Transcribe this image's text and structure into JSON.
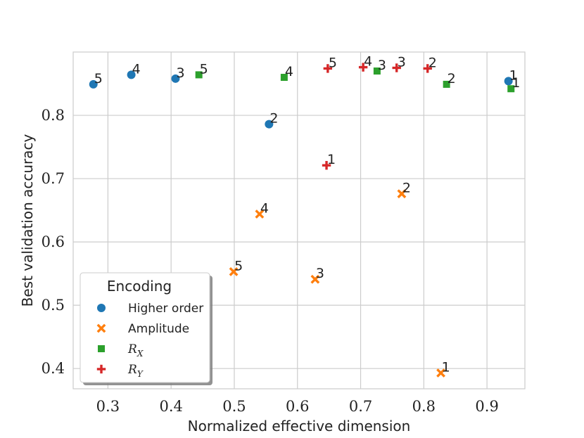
{
  "chart_data": {
    "type": "scatter",
    "title": "",
    "xlabel": "Normalized effective dimension",
    "ylabel": "Best validation accuracy",
    "xlim": [
      0.245,
      0.96
    ],
    "ylim": [
      0.368,
      0.9
    ],
    "xticks": [
      0.3,
      0.4,
      0.5,
      0.6,
      0.7,
      0.8,
      0.9
    ],
    "yticks": [
      0.4,
      0.5,
      0.6,
      0.7,
      0.8
    ],
    "xtick_labels": [
      "0.3",
      "0.4",
      "0.5",
      "0.6",
      "0.7",
      "0.8",
      "0.9"
    ],
    "ytick_labels": [
      "0.4",
      "0.5",
      "0.6",
      "0.7",
      "0.8"
    ],
    "grid": true,
    "legend": {
      "title": "Encoding",
      "position": "bottom-left"
    },
    "series": [
      {
        "name": "Higher order",
        "marker": "circle",
        "color": "#1f77b4",
        "points": [
          {
            "x": 0.277,
            "y": 0.849,
            "label": "5"
          },
          {
            "x": 0.337,
            "y": 0.864,
            "label": "4"
          },
          {
            "x": 0.407,
            "y": 0.858,
            "label": "3"
          },
          {
            "x": 0.555,
            "y": 0.786,
            "label": "2"
          },
          {
            "x": 0.934,
            "y": 0.854,
            "label": "1"
          }
        ]
      },
      {
        "name": "Amplitude",
        "marker": "x",
        "color": "#ff7f0e",
        "points": [
          {
            "x": 0.499,
            "y": 0.553,
            "label": "5"
          },
          {
            "x": 0.54,
            "y": 0.644,
            "label": "4"
          },
          {
            "x": 0.628,
            "y": 0.541,
            "label": "3"
          },
          {
            "x": 0.765,
            "y": 0.676,
            "label": "2"
          },
          {
            "x": 0.827,
            "y": 0.393,
            "label": "1"
          }
        ]
      },
      {
        "name": "R_X",
        "display": {
          "base": "R",
          "sub": "X"
        },
        "marker": "square",
        "color": "#2ca02c",
        "points": [
          {
            "x": 0.444,
            "y": 0.864,
            "label": "5"
          },
          {
            "x": 0.579,
            "y": 0.86,
            "label": "4"
          },
          {
            "x": 0.726,
            "y": 0.87,
            "label": "3"
          },
          {
            "x": 0.836,
            "y": 0.849,
            "label": "2"
          },
          {
            "x": 0.938,
            "y": 0.842,
            "label": "1"
          }
        ]
      },
      {
        "name": "R_Y",
        "display": {
          "base": "R",
          "sub": "Y"
        },
        "marker": "plus",
        "color": "#d62728",
        "points": [
          {
            "x": 0.648,
            "y": 0.874,
            "label": "5"
          },
          {
            "x": 0.704,
            "y": 0.876,
            "label": "4"
          },
          {
            "x": 0.757,
            "y": 0.875,
            "label": "3"
          },
          {
            "x": 0.806,
            "y": 0.874,
            "label": "2"
          },
          {
            "x": 0.646,
            "y": 0.721,
            "label": "1"
          }
        ]
      }
    ]
  }
}
